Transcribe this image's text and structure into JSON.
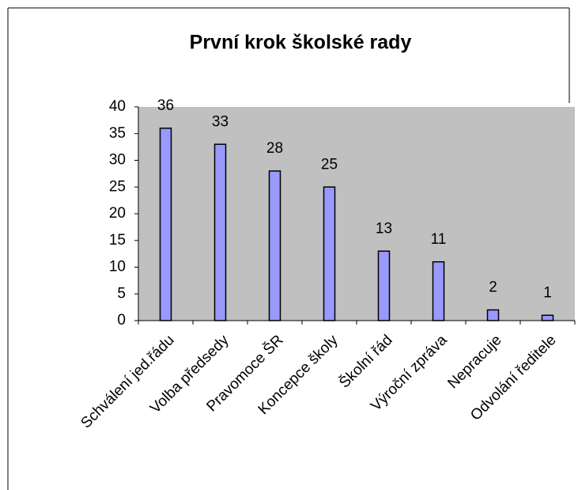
{
  "chart_data": {
    "type": "bar",
    "title": "První krok školské rady",
    "categories": [
      "Schválení jed.řádu",
      "Volba předsedy",
      "Pravomoce ŠR",
      "Koncepce školy",
      "Školní řád",
      "Výroční zpráva",
      "Nepracuje",
      "Odvolání ředitele"
    ],
    "values": [
      36,
      33,
      28,
      25,
      13,
      11,
      2,
      1
    ],
    "color": "#9999ff",
    "ylim": [
      0,
      40
    ],
    "yticks": [
      0,
      5,
      10,
      15,
      20,
      25,
      30,
      35,
      40
    ],
    "grid": false
  }
}
